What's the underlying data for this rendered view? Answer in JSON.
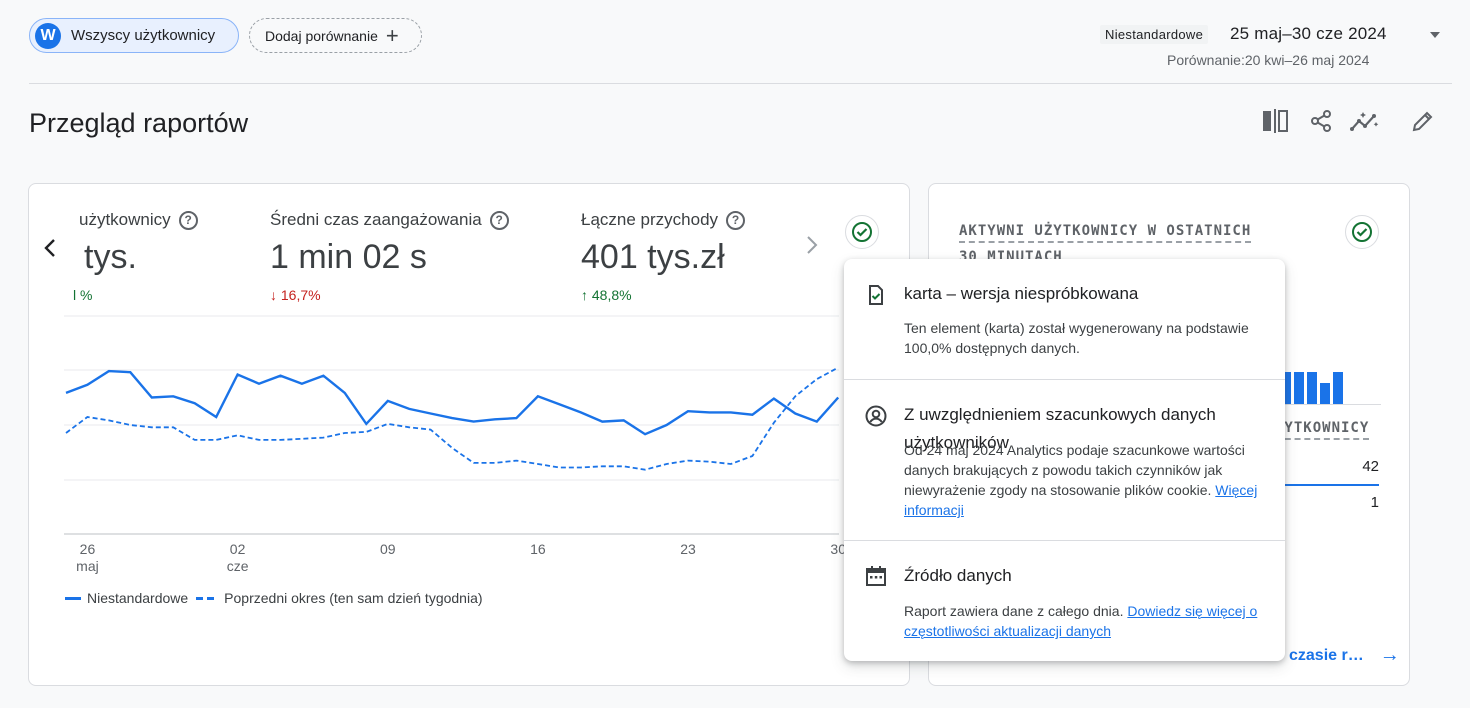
{
  "segment": {
    "avatar_letter": "W",
    "label": "Wszyscy użytkownicy"
  },
  "compare": {
    "label": "Dodaj porównanie",
    "plus": "+"
  },
  "date": {
    "badge": "Niestandardowe",
    "range": "25 maj–30 cze 2024",
    "comparison": "Porównanie:20 kwi–26 maj 2024"
  },
  "page": {
    "title": "Przegląd raportów"
  },
  "actions": [
    "compare-columns-icon",
    "share-icon",
    "insights-icon",
    "edit-icon"
  ],
  "main_card": {
    "nav_prev": "‹",
    "nav_next": "›",
    "metrics": [
      {
        "label": "użytkownicy",
        "value": "tys.",
        "change": "l %",
        "direction": "up"
      },
      {
        "label": "Średni czas zaangażowania",
        "value": "1 min 02 s",
        "change": "↓ 16,7%",
        "direction": "down"
      },
      {
        "label": "Łączne przychody",
        "value": "401 tys.zł",
        "change": "↑ 48,8%",
        "direction": "up"
      }
    ],
    "legend": {
      "current": "Niestandardowe",
      "previous": "Poprzedni okres (ten sam dzień tygodnia)"
    }
  },
  "chart_data": {
    "type": "line",
    "x_ticks": [
      {
        "day": "26",
        "month": "maj"
      },
      {
        "day": "02",
        "month": "cze"
      },
      {
        "day": "09",
        "month": ""
      },
      {
        "day": "16",
        "month": ""
      },
      {
        "day": "23",
        "month": ""
      },
      {
        "day": "30",
        "month": ""
      }
    ],
    "x_range": [
      "2024-05-25",
      "2024-06-30"
    ],
    "grid": true,
    "series": [
      {
        "name": "Niestandardowe",
        "style": "solid",
        "color": "#1a73e8",
        "values": [
          5.3,
          6.0,
          7.2,
          7.1,
          4.9,
          5.0,
          4.4,
          3.2,
          6.9,
          6.1,
          6.8,
          6.1,
          6.8,
          5.3,
          2.6,
          4.6,
          3.9,
          3.5,
          3.1,
          2.8,
          3.0,
          3.1,
          5.0,
          4.3,
          3.6,
          2.8,
          2.9,
          1.7,
          2.5,
          3.7,
          3.6,
          3.6,
          3.4,
          4.8,
          3.5,
          2.8,
          4.9
        ]
      },
      {
        "name": "Poprzedni okres (ten sam dzień tygodnia)",
        "style": "dashed",
        "color": "#1a73e8",
        "values": [
          1.8,
          3.2,
          2.9,
          2.5,
          2.3,
          2.3,
          1.2,
          1.2,
          1.6,
          1.2,
          1.2,
          1.3,
          1.4,
          1.8,
          1.9,
          2.6,
          2.3,
          2.1,
          0.5,
          -0.8,
          -0.8,
          -0.6,
          -0.9,
          -1.2,
          -1.2,
          -1.1,
          -1.1,
          -1.4,
          -0.9,
          -0.6,
          -0.7,
          -0.9,
          -0.2,
          2.7,
          5.0,
          6.5,
          7.5
        ]
      }
    ],
    "ylim": [
      -7,
      12
    ]
  },
  "right_card": {
    "title_line1": "AKTYWNI UŻYTKOWNICY W OSTATNICH",
    "title_line2": "30 MINUTACH",
    "bars": [
      1,
      1,
      1,
      0.65,
      1
    ],
    "col_header": "ŻYTKOWNICY",
    "row1_value": "42",
    "row2_value": "1",
    "link": "czasie r…",
    "link_arrow": "→"
  },
  "popup": {
    "sections": [
      {
        "icon": "verified-doc-icon",
        "title": "karta – wersja niespróbkowana",
        "body": "Ten element (karta) został wygenerowany na podstawie 100,0% dostępnych danych.",
        "link": ""
      },
      {
        "icon": "account-circle-icon",
        "title": "Z uwzględnieniem szacunkowych danych użytkowników",
        "body": "Od 24 maj 2024 Analytics podaje szacunkowe wartości danych brakujących z powodu takich czynników jak niewyrażenie zgody na stosowanie plików cookie.",
        "link": "Więcej informacji"
      },
      {
        "icon": "calendar-icon",
        "title": "Źródło danych",
        "body": "Raport zawiera dane z całego dnia.",
        "link": "Dowiedz się więcej o częstotliwości aktualizacji danych"
      }
    ]
  },
  "colors": {
    "accent": "#1a73e8",
    "positive": "#137333",
    "negative": "#c5221f",
    "check": "#137333"
  }
}
